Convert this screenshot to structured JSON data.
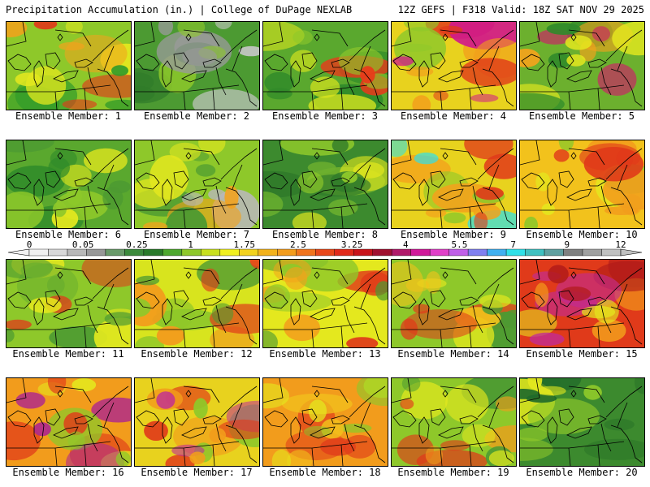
{
  "header": {
    "title": "Precipitation Accumulation (in.) | College of DuPage NEXLAB",
    "run_info": "12Z GEFS | F318 Valid: 18Z SAT NOV 29 2025"
  },
  "members": [
    {
      "label": "Ensemble Member: 1",
      "base": "#8ec82a",
      "blobs": [
        "#2f9a2a",
        "#e4e81e",
        "#f2a21c",
        "#e03a1a"
      ]
    },
    {
      "label": "Ensemble Member: 2",
      "base": "#4c9a32",
      "blobs": [
        "#2f7a2a",
        "#9a9a9a",
        "#c8c8c8",
        "#8ec82a"
      ]
    },
    {
      "label": "Ensemble Member: 3",
      "base": "#5aa82e",
      "blobs": [
        "#2f8a2a",
        "#d8e41e",
        "#e83a1a",
        "#8ec82a"
      ]
    },
    {
      "label": "Ensemble Member: 4",
      "base": "#e8d21e",
      "blobs": [
        "#f29c1c",
        "#e03a1a",
        "#d01a8a",
        "#8ec82a"
      ]
    },
    {
      "label": "Ensemble Member: 5",
      "base": "#6cb02e",
      "blobs": [
        "#2f8a2a",
        "#e4e81e",
        "#d01a6a",
        "#f2a21c"
      ]
    },
    {
      "label": "Ensemble Member: 6",
      "base": "#5aa82e",
      "blobs": [
        "#2f8a2a",
        "#8ec82a",
        "#e4e81e",
        "#4c9a32"
      ]
    },
    {
      "label": "Ensemble Member: 7",
      "base": "#8ec82a",
      "blobs": [
        "#4c9a32",
        "#e4e81e",
        "#b8b8b8",
        "#f2a21c"
      ]
    },
    {
      "label": "Ensemble Member: 8",
      "base": "#3c8a2e",
      "blobs": [
        "#2f7a2a",
        "#8ec82a",
        "#e4e81e",
        "#6cb02e"
      ]
    },
    {
      "label": "Ensemble Member: 9",
      "base": "#e8d21e",
      "blobs": [
        "#e03a1a",
        "#f2a21c",
        "#30e0e8",
        "#8ec82a"
      ]
    },
    {
      "label": "Ensemble Member: 10",
      "base": "#f2c21c",
      "blobs": [
        "#f29c1c",
        "#e03a1a",
        "#e4e81e",
        "#8ec82a"
      ]
    },
    {
      "label": "Ensemble Member: 11",
      "base": "#8ec82a",
      "blobs": [
        "#4c9a32",
        "#e4e81e",
        "#e03a1a",
        "#6cb02e"
      ]
    },
    {
      "label": "Ensemble Member: 12",
      "base": "#d8e41e",
      "blobs": [
        "#8ec82a",
        "#f29c1c",
        "#e03a1a",
        "#4c9a32"
      ]
    },
    {
      "label": "Ensemble Member: 13",
      "base": "#e4e81e",
      "blobs": [
        "#8ec82a",
        "#f2a21c",
        "#e03a1a",
        "#4c9a32"
      ]
    },
    {
      "label": "Ensemble Member: 14",
      "base": "#8ec82a",
      "blobs": [
        "#f2c21c",
        "#e03a1a",
        "#4c9a32",
        "#e4e81e"
      ]
    },
    {
      "label": "Ensemble Member: 15",
      "base": "#e03a1a",
      "blobs": [
        "#b01a1a",
        "#c02a9a",
        "#f29c1c",
        "#e4e81e"
      ]
    },
    {
      "label": "Ensemble Member: 16",
      "base": "#f29c1c",
      "blobs": [
        "#e03a1a",
        "#b02a8a",
        "#e4e81e",
        "#8ec82a"
      ]
    },
    {
      "label": "Ensemble Member: 17",
      "base": "#e8d21e",
      "blobs": [
        "#f29c1c",
        "#e03a1a",
        "#8ec82a",
        "#c02a9a"
      ]
    },
    {
      "label": "Ensemble Member: 18",
      "base": "#f29c1c",
      "blobs": [
        "#e03a1a",
        "#e4e81e",
        "#8ec82a",
        "#f2c21c"
      ]
    },
    {
      "label": "Ensemble Member: 19",
      "base": "#8ec82a",
      "blobs": [
        "#e4e81e",
        "#e03a1a",
        "#f29c1c",
        "#4c9a32"
      ]
    },
    {
      "label": "Ensemble Member: 20",
      "base": "#3c8a2e",
      "blobs": [
        "#2f7a2a",
        "#8ec82a",
        "#e4e81e",
        "#1f6a2a"
      ]
    }
  ],
  "colorbar": {
    "colors": [
      "#f0f0f0",
      "#d8d8d8",
      "#b8b8b8",
      "#989898",
      "#6a9a6a",
      "#3c8a3c",
      "#2a7a2a",
      "#4ea82e",
      "#8ec82a",
      "#c8e01e",
      "#f0f020",
      "#f2d21e",
      "#f2b21c",
      "#f29c1c",
      "#f0741c",
      "#e8481a",
      "#e02a1a",
      "#c8141a",
      "#a01030",
      "#b01a6a",
      "#d01a9a",
      "#e040c8",
      "#c060e8",
      "#8080f0",
      "#40b0f0",
      "#30e0e8",
      "#40c0c0",
      "#60a0a0",
      "#808080",
      "#a0a0a0",
      "#c0c0c0"
    ],
    "tick_labels": [
      "0",
      "0.05",
      "0.25",
      "1",
      "1.75",
      "2.5",
      "3.25",
      "4",
      "5.5",
      "7",
      "9",
      "12"
    ]
  }
}
